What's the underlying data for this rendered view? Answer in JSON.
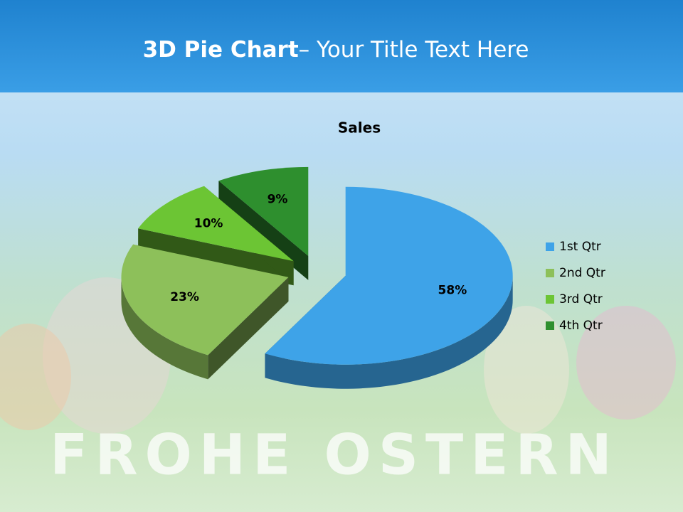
{
  "slide_title": {
    "bold": "3D Pie Chart",
    "rest": "– Your Title Text Here"
  },
  "background_text": "FROHE OSTERN",
  "chart_data": {
    "type": "pie3d",
    "title": "Sales",
    "categories": [
      "1st Qtr",
      "2nd Qtr",
      "3rd Qtr",
      "4th Qtr"
    ],
    "values": [
      58,
      23,
      10,
      9
    ],
    "value_labels": [
      "58%",
      "23%",
      "10%",
      "9%"
    ],
    "colors": [
      "#3ea3e8",
      "#8dc05a",
      "#6cc534",
      "#2e8f2e"
    ],
    "legend": "right"
  }
}
